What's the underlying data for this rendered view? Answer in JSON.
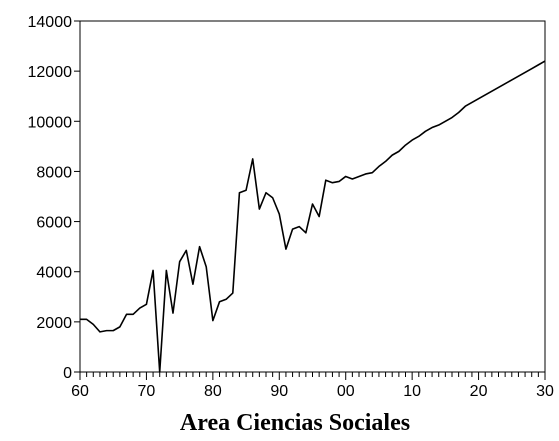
{
  "chart_data": {
    "type": "line",
    "title": "Area Ciencias Sociales",
    "categories": [
      "60",
      null,
      null,
      null,
      null,
      null,
      null,
      null,
      null,
      null,
      "70",
      null,
      null,
      null,
      null,
      null,
      null,
      null,
      null,
      null,
      "80",
      null,
      null,
      null,
      null,
      null,
      null,
      null,
      null,
      null,
      "90",
      null,
      null,
      null,
      null,
      null,
      null,
      null,
      null,
      null,
      "00",
      null,
      null,
      null,
      null,
      null,
      null,
      null,
      null,
      null,
      "10",
      null,
      null,
      null,
      null,
      null,
      null,
      null,
      null,
      null,
      "20",
      null,
      null,
      null,
      null,
      null,
      null,
      null,
      null,
      null,
      "30"
    ],
    "values": [
      2100,
      2100,
      1900,
      1600,
      1650,
      1650,
      1800,
      2300,
      2300,
      2550,
      2700,
      4050,
      0,
      4050,
      2350,
      4400,
      4850,
      3500,
      5000,
      4200,
      2050,
      2800,
      2900,
      3150,
      7150,
      7250,
      8500,
      6500,
      7150,
      6950,
      6300,
      4900,
      5700,
      5800,
      5550,
      6700,
      6200,
      7650,
      7550,
      7600,
      7800,
      7700,
      7800,
      7900,
      7950,
      8200,
      8400,
      8650,
      8800,
      9050,
      9250,
      9400,
      9600,
      9750,
      9850,
      10000,
      10150,
      10350,
      10600,
      10750,
      10900,
      11050,
      11200,
      11350,
      11500,
      11650,
      11800,
      11950,
      12100,
      12250,
      12400
    ],
    "color": "#000000",
    "ylim": [
      0,
      14000
    ],
    "yticks": [
      0,
      2000,
      4000,
      6000,
      8000,
      10000,
      12000,
      14000
    ]
  }
}
